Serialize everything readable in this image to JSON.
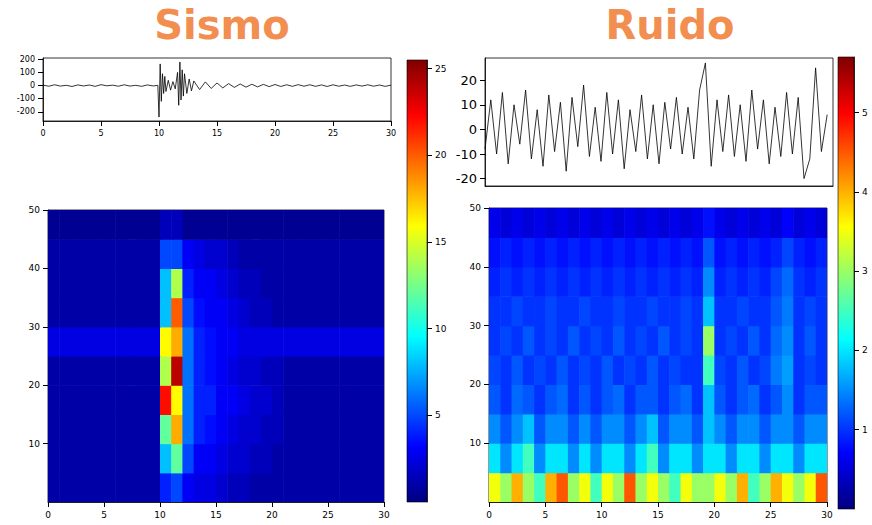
{
  "chart_data": [
    {
      "type": "line",
      "title": "Sismo",
      "color": "#000000",
      "x": [
        0,
        0.5,
        1,
        1.5,
        2,
        2.5,
        3,
        3.5,
        4,
        4.5,
        5,
        5.5,
        6,
        6.5,
        7,
        7.5,
        8,
        8.5,
        9,
        9.5,
        9.9,
        10,
        10.1,
        10.2,
        10.3,
        10.4,
        10.5,
        10.6,
        10.8,
        11,
        11.2,
        11.4,
        11.6,
        11.7,
        11.8,
        11.9,
        12,
        12.1,
        12.2,
        12.4,
        12.6,
        12.8,
        13,
        13.5,
        14,
        14.5,
        15,
        15.5,
        16,
        16.5,
        17,
        17.5,
        18,
        18.5,
        19,
        19.5,
        20,
        20.5,
        21,
        21.5,
        22,
        22.5,
        23,
        23.5,
        24,
        24.5,
        25,
        25.5,
        26,
        26.5,
        27,
        27.5,
        28,
        28.5,
        29,
        29.5,
        30
      ],
      "values": [
        3,
        -5,
        6,
        -4,
        2,
        -7,
        5,
        -3,
        4,
        -6,
        7,
        -2,
        3,
        -5,
        6,
        -4,
        2,
        -6,
        5,
        -3,
        2,
        -240,
        165,
        -120,
        90,
        -60,
        70,
        -45,
        40,
        -35,
        30,
        -25,
        100,
        -150,
        180,
        -110,
        120,
        -80,
        90,
        -60,
        50,
        -40,
        35,
        -30,
        28,
        -22,
        20,
        -18,
        15,
        -14,
        12,
        -12,
        10,
        -10,
        9,
        -8,
        8,
        -7,
        6,
        -6,
        7,
        -5,
        6,
        -6,
        5,
        -7,
        6,
        -5,
        4,
        -6,
        5,
        -4,
        6,
        -5,
        4,
        -6,
        3
      ],
      "xlim": [
        0,
        30
      ],
      "xticks": [
        0,
        5,
        10,
        15,
        20,
        25,
        30
      ],
      "ylim": [
        -270,
        210
      ],
      "yticks": [
        -200,
        -100,
        0,
        100,
        200
      ]
    },
    {
      "type": "heatmap",
      "time_bins": [
        0,
        1,
        2,
        3,
        4,
        5,
        6,
        7,
        8,
        9,
        10,
        11,
        12,
        13,
        14,
        15,
        16,
        17,
        18,
        19,
        20,
        21,
        22,
        23,
        24,
        25,
        26,
        27,
        28,
        29,
        30
      ],
      "freq_bins": [
        0,
        5,
        10,
        15,
        20,
        25,
        30,
        35,
        40,
        45,
        50
      ],
      "cells": [
        [
          1,
          1,
          1,
          1,
          1,
          1,
          1,
          1,
          1,
          1,
          4,
          5,
          3,
          2.5,
          2.5,
          2,
          1.5,
          1.5,
          1,
          1,
          1,
          1,
          1,
          1,
          1,
          1,
          1,
          1,
          1,
          1
        ],
        [
          1,
          1,
          1,
          1,
          1,
          1,
          1,
          1,
          1,
          1,
          8,
          12,
          5,
          3,
          3,
          2.5,
          2,
          2,
          1.5,
          1.5,
          1,
          1,
          1,
          1,
          1,
          1,
          1,
          1,
          1,
          1
        ],
        [
          1,
          1,
          1,
          1,
          1,
          1,
          1,
          1,
          1,
          1,
          12,
          18,
          6,
          4,
          3.5,
          3,
          2.5,
          2,
          2,
          1.5,
          1.5,
          1,
          1,
          1,
          1,
          1,
          1,
          1,
          1,
          1
        ],
        [
          1,
          1,
          1,
          1,
          1,
          1,
          1,
          1,
          1,
          1,
          22,
          16,
          6,
          4,
          4,
          3,
          3,
          2.5,
          2,
          2,
          1.5,
          1,
          1,
          1,
          1,
          1,
          1,
          1,
          1,
          1
        ],
        [
          1,
          1,
          1,
          1,
          1,
          1,
          1,
          1,
          1,
          1,
          14,
          24,
          6,
          4,
          3.5,
          3,
          2.5,
          2,
          2,
          1.5,
          1.5,
          1,
          1,
          1,
          1,
          1,
          1,
          1,
          1,
          1
        ],
        [
          2.5,
          2.5,
          2.5,
          2.5,
          2.5,
          2.5,
          2.5,
          2.5,
          2.5,
          2.5,
          16,
          18,
          6,
          4,
          3.5,
          3,
          3,
          2.5,
          2.5,
          2.5,
          2.5,
          2.5,
          2.5,
          2.5,
          2.5,
          2.5,
          2.5,
          2.5,
          2.5,
          2.5
        ],
        [
          1,
          1,
          1,
          1,
          1,
          1,
          1,
          1,
          1,
          1,
          8,
          20,
          5,
          3.5,
          3,
          3,
          2.5,
          2,
          1.5,
          1.5,
          1,
          1,
          1,
          1,
          1,
          1,
          1,
          1,
          1,
          1
        ],
        [
          1,
          1,
          1,
          1,
          1,
          1,
          1,
          1,
          1,
          1,
          8,
          14,
          4,
          3,
          3,
          2.5,
          2,
          1.5,
          1.5,
          1,
          1,
          1,
          1,
          1,
          1,
          1,
          1,
          1,
          1,
          1
        ],
        [
          1,
          1,
          1,
          1,
          1,
          1,
          1,
          1,
          1,
          1,
          5,
          5,
          3,
          2.5,
          2,
          2,
          1.5,
          1,
          1,
          1,
          1,
          1,
          1,
          1,
          1,
          1,
          1,
          1,
          1,
          1
        ],
        [
          0.5,
          0.5,
          0.5,
          0.5,
          0.5,
          0.5,
          0.5,
          0.5,
          0.5,
          0.5,
          1.5,
          1.5,
          0.5,
          0.5,
          0.5,
          0.5,
          0.5,
          0.5,
          0.5,
          0.5,
          0.5,
          0.5,
          0.5,
          0.5,
          0.5,
          0.5,
          0.5,
          0.5,
          0.5,
          0.5
        ]
      ],
      "xlim": [
        0,
        30
      ],
      "xticks": [
        0,
        5,
        10,
        15,
        20,
        25,
        30
      ],
      "ylim": [
        0,
        50
      ],
      "yticks": [
        10,
        20,
        30,
        40,
        50
      ],
      "colorbar": {
        "range": [
          0,
          25.5
        ],
        "ticks": [
          5,
          10,
          15,
          20,
          25
        ]
      }
    },
    {
      "type": "line",
      "title": "Ruido",
      "color": "#000000",
      "tick_labels": "y",
      "x": [
        0,
        0.5,
        1,
        1.5,
        2,
        2.5,
        3,
        3.5,
        4,
        4.5,
        5,
        5.5,
        6,
        6.5,
        7,
        7.5,
        8,
        8.5,
        9,
        9.5,
        10,
        10.5,
        11,
        11.5,
        12,
        12.5,
        13,
        13.5,
        14,
        14.5,
        15,
        15.5,
        16,
        16.5,
        17,
        17.5,
        18,
        18.5,
        19,
        19.5,
        20,
        20.5,
        21,
        21.5,
        22,
        22.5,
        23,
        23.5,
        24,
        24.5,
        25,
        25.5,
        26,
        26.5,
        27,
        27.5,
        28,
        28.5,
        29,
        29.5
      ],
      "values": [
        -8,
        12,
        -10,
        15,
        -14,
        10,
        -6,
        16,
        -12,
        8,
        -15,
        14,
        -9,
        11,
        -17,
        13,
        -7,
        18,
        -11,
        9,
        -13,
        15,
        -10,
        12,
        -16,
        8,
        -9,
        14,
        -12,
        10,
        -14,
        11,
        -8,
        13,
        -10,
        9,
        -12,
        16,
        27,
        -15,
        12,
        -9,
        14,
        -11,
        10,
        -13,
        16,
        -8,
        12,
        -14,
        9,
        -11,
        15,
        -10,
        13,
        -20,
        -12,
        25,
        -9,
        6
      ],
      "xlim": [
        0,
        30
      ],
      "ylim": [
        -23,
        29
      ],
      "yticks": [
        -20,
        -10,
        0,
        10,
        20
      ]
    },
    {
      "type": "heatmap",
      "time_bins": [
        0,
        1,
        2,
        3,
        4,
        5,
        6,
        7,
        8,
        9,
        10,
        11,
        12,
        13,
        14,
        15,
        16,
        17,
        18,
        19,
        20,
        21,
        22,
        23,
        24,
        25,
        26,
        27,
        28,
        29,
        30
      ],
      "freq_bins": [
        0,
        5,
        10,
        15,
        20,
        25,
        30,
        35,
        40,
        45,
        50
      ],
      "cells": [
        [
          3.5,
          3,
          4,
          3,
          2.5,
          4,
          4.5,
          3,
          3.5,
          2.5,
          3.5,
          3,
          4.5,
          3,
          3.5,
          3,
          2.5,
          3.5,
          3,
          3,
          3.5,
          3,
          4,
          2.5,
          3,
          4,
          3.5,
          3,
          3.5,
          4.5
        ],
        [
          2,
          1.5,
          2,
          2.5,
          1.5,
          2,
          2,
          1.5,
          2,
          1.5,
          2,
          2,
          1.5,
          2,
          2.5,
          1.5,
          2,
          2,
          1.5,
          2,
          2,
          1.5,
          2,
          2,
          1.5,
          2,
          2,
          1.5,
          2,
          2
        ],
        [
          1.5,
          1.2,
          1.5,
          1.8,
          1.2,
          1.5,
          1.5,
          1.2,
          1.5,
          1.2,
          1.5,
          1.5,
          1.2,
          1.5,
          1.8,
          1.2,
          1.5,
          1.5,
          1.2,
          1.8,
          1.5,
          1.2,
          1.5,
          1.5,
          1.2,
          1.5,
          1.5,
          1.2,
          1.5,
          1.5
        ],
        [
          1.2,
          1,
          1.3,
          1.2,
          1,
          1.2,
          1.3,
          1,
          1.2,
          1,
          1.2,
          1.3,
          1,
          1.2,
          1.2,
          1,
          1.2,
          1.3,
          1,
          1.8,
          1.2,
          1,
          1.2,
          1.3,
          1,
          1.2,
          1.5,
          1,
          1.2,
          1.2
        ],
        [
          1.1,
          1,
          1.2,
          1,
          1.1,
          1,
          1.2,
          1,
          1.1,
          1,
          1.2,
          1,
          1.1,
          1,
          1.2,
          1,
          1.1,
          1,
          1,
          2.5,
          1.1,
          1,
          1.2,
          1,
          1.1,
          1.4,
          1.6,
          1,
          1.1,
          1
        ],
        [
          1,
          1.1,
          1,
          1.2,
          1,
          1.1,
          1,
          1.2,
          1,
          1.1,
          1,
          1.2,
          1,
          1.1,
          1,
          1.2,
          1,
          1.1,
          1,
          3,
          1,
          1.1,
          1,
          1.2,
          1,
          1.3,
          1.5,
          1,
          1.2,
          1
        ],
        [
          1,
          1,
          1.1,
          1,
          1,
          1.1,
          1,
          1,
          1.1,
          1,
          1,
          1.1,
          1,
          1,
          1.1,
          1,
          1,
          1.1,
          1,
          1.8,
          1,
          1,
          1.1,
          1,
          1,
          1.2,
          1.4,
          1,
          1.1,
          1
        ],
        [
          0.9,
          1,
          0.9,
          1,
          0.9,
          1,
          0.9,
          1,
          0.9,
          1,
          0.9,
          1,
          0.9,
          1,
          0.9,
          1,
          0.9,
          1,
          0.9,
          1.5,
          0.9,
          1,
          0.9,
          1,
          0.9,
          1.1,
          1.3,
          1,
          0.9,
          1
        ],
        [
          0.8,
          0.9,
          0.8,
          0.9,
          0.8,
          0.9,
          0.8,
          0.9,
          0.8,
          0.9,
          0.8,
          0.9,
          0.8,
          0.9,
          0.8,
          0.9,
          0.8,
          0.9,
          0.8,
          1.2,
          0.8,
          0.9,
          0.8,
          0.9,
          0.8,
          0.9,
          1.1,
          0.9,
          0.8,
          0.9
        ],
        [
          0.6,
          0.5,
          0.6,
          0.5,
          0.6,
          0.5,
          0.6,
          0.5,
          0.6,
          0.5,
          0.6,
          0.5,
          0.6,
          0.5,
          0.6,
          0.5,
          0.6,
          0.5,
          0.6,
          0.8,
          0.6,
          0.5,
          0.6,
          0.5,
          0.6,
          0.5,
          0.7,
          0.5,
          0.6,
          0.5
        ]
      ],
      "xlim": [
        0,
        30
      ],
      "xticks": [
        0,
        5,
        10,
        15,
        20,
        25,
        30
      ],
      "ylim": [
        0,
        50
      ],
      "yticks": [
        10,
        20,
        30,
        40,
        50
      ],
      "colorbar": {
        "range": [
          0,
          5.7
        ],
        "ticks": [
          1,
          2,
          3,
          4,
          5
        ]
      }
    }
  ]
}
